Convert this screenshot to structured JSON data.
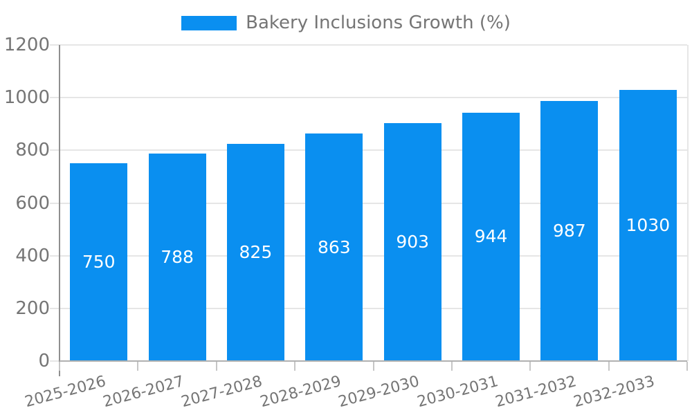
{
  "chart_data": {
    "type": "bar",
    "title": "Bakery Inclusions Growth (%)",
    "categories": [
      "2025-2026",
      "2026-2027",
      "2027-2028",
      "2028-2029",
      "2029-2030",
      "2030-2031",
      "2031-2032",
      "2032-2033"
    ],
    "values": [
      750,
      788,
      825,
      863,
      903,
      944,
      987,
      1030
    ],
    "xlabel": "",
    "ylabel": "",
    "ylim": [
      0,
      1200
    ],
    "yticks": [
      0,
      200,
      400,
      600,
      800,
      1000,
      1200
    ],
    "grid": true,
    "legend_position": "top-center",
    "value_labels": "inside-center",
    "bar_color": "#0a8ff0",
    "value_label_color": "#ffffff",
    "axis_text_color": "#757575",
    "gridline_color": "#e6e6e6",
    "background_color": "#ffffff"
  },
  "legend": {
    "label": "Bakery Inclusions Growth (%)"
  }
}
